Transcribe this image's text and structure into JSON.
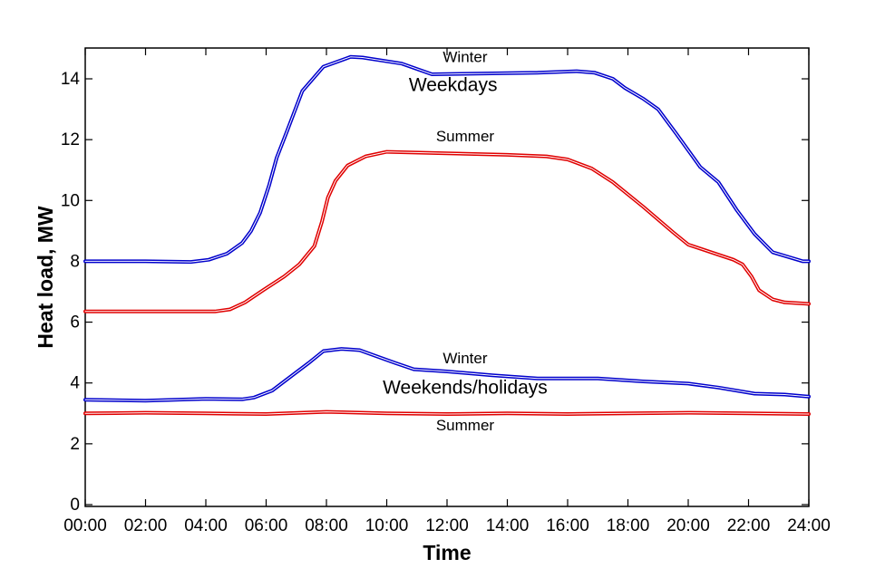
{
  "chart_data": {
    "type": "line",
    "xlabel": "Time",
    "ylabel": "Heat load, MW",
    "xlim": [
      0,
      24
    ],
    "ylim": [
      0,
      15
    ],
    "x_ticks": [
      {
        "value": 0,
        "label": "00:00"
      },
      {
        "value": 2,
        "label": "02:00"
      },
      {
        "value": 4,
        "label": "04:00"
      },
      {
        "value": 6,
        "label": "06:00"
      },
      {
        "value": 8,
        "label": "08:00"
      },
      {
        "value": 10,
        "label": "10:00"
      },
      {
        "value": 12,
        "label": "12:00"
      },
      {
        "value": 14,
        "label": "14:00"
      },
      {
        "value": 16,
        "label": "16:00"
      },
      {
        "value": 18,
        "label": "18:00"
      },
      {
        "value": 20,
        "label": "20:00"
      },
      {
        "value": 22,
        "label": "22:00"
      },
      {
        "value": 24,
        "label": "24:00"
      }
    ],
    "y_ticks": [
      {
        "value": 0,
        "label": "0"
      },
      {
        "value": 2,
        "label": "2"
      },
      {
        "value": 4,
        "label": "4"
      },
      {
        "value": 6,
        "label": "6"
      },
      {
        "value": 8,
        "label": "8"
      },
      {
        "value": 10,
        "label": "10"
      },
      {
        "value": 12,
        "label": "12"
      },
      {
        "value": 14,
        "label": "14"
      }
    ],
    "grid": false,
    "legend": "none",
    "series": [
      {
        "color": "#0000cc",
        "points": [
          [
            0,
            8.0
          ],
          [
            2,
            8.0
          ],
          [
            3.5,
            7.98
          ],
          [
            4.1,
            8.05
          ],
          [
            4.7,
            8.25
          ],
          [
            5.2,
            8.6
          ],
          [
            5.5,
            9.0
          ],
          [
            5.8,
            9.6
          ],
          [
            6.1,
            10.5
          ],
          [
            6.35,
            11.4
          ],
          [
            6.7,
            12.3
          ],
          [
            7.2,
            13.6
          ],
          [
            7.9,
            14.4
          ],
          [
            8.8,
            14.72
          ],
          [
            9.2,
            14.7
          ],
          [
            10.5,
            14.5
          ],
          [
            11.5,
            14.15
          ],
          [
            13.5,
            14.18
          ],
          [
            15,
            14.2
          ],
          [
            16.3,
            14.25
          ],
          [
            16.9,
            14.2
          ],
          [
            17.5,
            14.0
          ],
          [
            17.9,
            13.7
          ],
          [
            18.5,
            13.35
          ],
          [
            19,
            13.0
          ],
          [
            19.6,
            12.2
          ],
          [
            20.4,
            11.1
          ],
          [
            21,
            10.6
          ],
          [
            21.6,
            9.7
          ],
          [
            22.2,
            8.9
          ],
          [
            22.8,
            8.3
          ],
          [
            23.3,
            8.15
          ],
          [
            23.8,
            8.0
          ],
          [
            24,
            8.0
          ]
        ]
      },
      {
        "color": "#e00000",
        "points": [
          [
            0,
            6.35
          ],
          [
            4.3,
            6.35
          ],
          [
            4.8,
            6.42
          ],
          [
            5.3,
            6.65
          ],
          [
            5.9,
            7.05
          ],
          [
            6.6,
            7.5
          ],
          [
            7.1,
            7.9
          ],
          [
            7.6,
            8.5
          ],
          [
            7.85,
            9.3
          ],
          [
            8.05,
            10.1
          ],
          [
            8.3,
            10.65
          ],
          [
            8.7,
            11.15
          ],
          [
            9.3,
            11.45
          ],
          [
            10,
            11.6
          ],
          [
            12,
            11.55
          ],
          [
            14,
            11.5
          ],
          [
            15.3,
            11.45
          ],
          [
            16,
            11.35
          ],
          [
            16.8,
            11.05
          ],
          [
            17.5,
            10.6
          ],
          [
            18.5,
            9.8
          ],
          [
            19.5,
            8.95
          ],
          [
            20,
            8.55
          ],
          [
            21.5,
            8.05
          ],
          [
            21.8,
            7.9
          ],
          [
            22.1,
            7.5
          ],
          [
            22.35,
            7.05
          ],
          [
            22.8,
            6.75
          ],
          [
            23.2,
            6.65
          ],
          [
            24,
            6.6
          ]
        ]
      },
      {
        "color": "#0000cc",
        "points": [
          [
            0,
            3.45
          ],
          [
            2,
            3.42
          ],
          [
            4,
            3.48
          ],
          [
            5.2,
            3.46
          ],
          [
            5.6,
            3.52
          ],
          [
            6.2,
            3.75
          ],
          [
            6.8,
            4.2
          ],
          [
            7.4,
            4.65
          ],
          [
            7.9,
            5.05
          ],
          [
            8.5,
            5.12
          ],
          [
            9.1,
            5.08
          ],
          [
            9.6,
            4.9
          ],
          [
            10.3,
            4.65
          ],
          [
            10.9,
            4.45
          ],
          [
            12,
            4.38
          ],
          [
            13.5,
            4.25
          ],
          [
            15,
            4.15
          ],
          [
            17,
            4.15
          ],
          [
            18.5,
            4.05
          ],
          [
            20,
            3.98
          ],
          [
            21,
            3.85
          ],
          [
            22.2,
            3.65
          ],
          [
            23.2,
            3.62
          ],
          [
            24,
            3.55
          ]
        ]
      },
      {
        "color": "#e00000",
        "points": [
          [
            0,
            3.0
          ],
          [
            2,
            3.02
          ],
          [
            4,
            3.0
          ],
          [
            6,
            2.98
          ],
          [
            8,
            3.05
          ],
          [
            10,
            3.0
          ],
          [
            12,
            2.98
          ],
          [
            14,
            3.0
          ],
          [
            16,
            2.98
          ],
          [
            18,
            3.0
          ],
          [
            20,
            3.02
          ],
          [
            22,
            3.0
          ],
          [
            24,
            2.98
          ]
        ]
      }
    ],
    "annotations": [
      {
        "text": "Winter",
        "x": 12.6,
        "y": 14.55,
        "size": "small"
      },
      {
        "text": "Weekdays",
        "x": 12.2,
        "y": 13.6,
        "size": "big"
      },
      {
        "text": "Summer",
        "x": 12.6,
        "y": 11.95,
        "size": "small"
      },
      {
        "text": "Winter",
        "x": 12.6,
        "y": 4.65,
        "size": "small"
      },
      {
        "text": "Weekends/holidays",
        "x": 12.6,
        "y": 3.65,
        "size": "big"
      },
      {
        "text": "Summer",
        "x": 12.6,
        "y": 2.45,
        "size": "small"
      }
    ]
  }
}
